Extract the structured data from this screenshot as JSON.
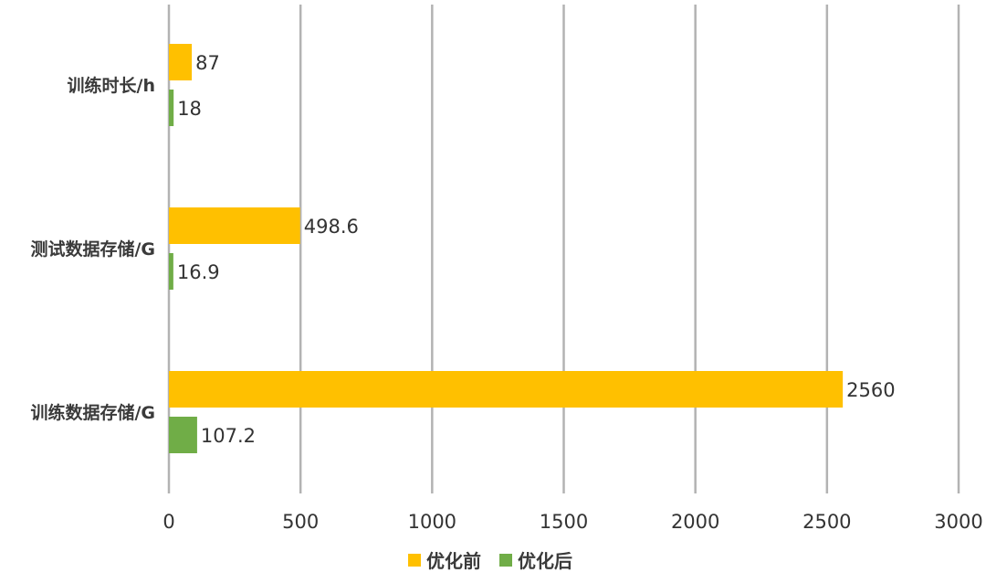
{
  "chart_data": {
    "type": "bar",
    "orientation": "horizontal",
    "categories": [
      "训练时长/h",
      "测试数据存储/G",
      "训练数据存储/G"
    ],
    "series": [
      {
        "name": "优化前",
        "values": [
          87,
          498.6,
          2560
        ],
        "color": "#FFC000"
      },
      {
        "name": "优化后",
        "values": [
          18,
          16.9,
          107.2
        ],
        "color": "#70AD47"
      }
    ],
    "xlim": [
      0,
      3000
    ],
    "xticks": [
      0,
      500,
      1000,
      1500,
      2000,
      2500,
      3000
    ],
    "grid": "vertical",
    "legend": "bottom-center",
    "title": "",
    "xlabel": "",
    "ylabel": ""
  }
}
